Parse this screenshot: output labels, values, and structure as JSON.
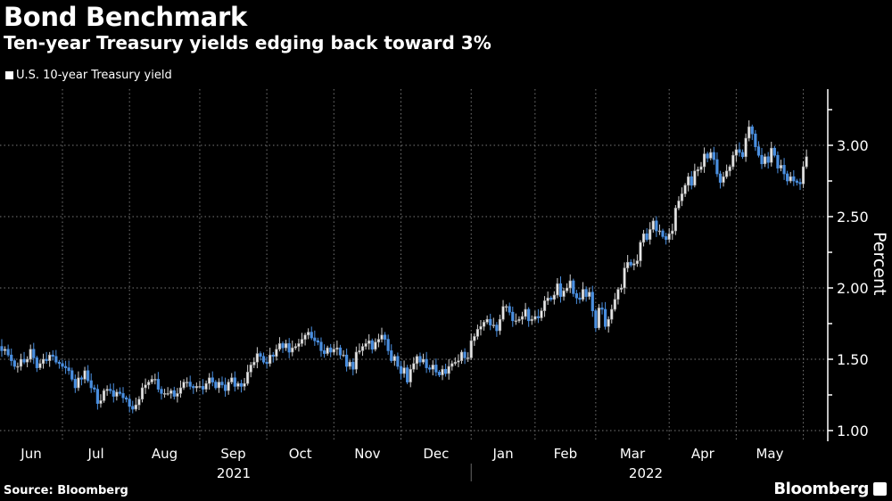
{
  "chart_data": {
    "type": "candlestick",
    "title": "Bond Benchmark",
    "subtitle": "Ten-year Treasury yields edging back toward 3%",
    "legend": [
      {
        "name": "U.S. 10-year Treasury yield",
        "color": "#ffffff"
      }
    ],
    "ylabel": "Percent",
    "ylim": [
      0.9,
      3.38
    ],
    "yticks": [
      "1.00",
      "1.50",
      "2.00",
      "2.50",
      "3.00"
    ],
    "month_labels": [
      "Jun",
      "Jul",
      "Aug",
      "Sep",
      "Oct",
      "Nov",
      "Dec",
      "Jan",
      "Feb",
      "Mar",
      "Apr",
      "May"
    ],
    "year_labels": [
      "2021",
      "2022"
    ],
    "month_start_index": [
      0,
      22,
      43,
      65,
      86,
      107,
      128,
      150,
      170,
      189,
      212,
      233,
      254
    ],
    "up_color": "#d0d0d0",
    "down_color": "#4a8fe0",
    "closes": [
      1.6,
      1.62,
      1.59,
      1.56,
      1.57,
      1.53,
      1.49,
      1.45,
      1.45,
      1.5,
      1.48,
      1.5,
      1.57,
      1.51,
      1.44,
      1.47,
      1.5,
      1.49,
      1.53,
      1.52,
      1.48,
      1.47,
      1.45,
      1.44,
      1.42,
      1.36,
      1.3,
      1.37,
      1.36,
      1.42,
      1.35,
      1.3,
      1.29,
      1.19,
      1.21,
      1.28,
      1.29,
      1.28,
      1.24,
      1.27,
      1.26,
      1.23,
      1.22,
      1.17,
      1.15,
      1.18,
      1.22,
      1.3,
      1.32,
      1.34,
      1.36,
      1.36,
      1.29,
      1.26,
      1.26,
      1.26,
      1.28,
      1.24,
      1.26,
      1.3,
      1.34,
      1.34,
      1.31,
      1.3,
      1.31,
      1.31,
      1.29,
      1.33,
      1.37,
      1.34,
      1.3,
      1.34,
      1.32,
      1.28,
      1.34,
      1.37,
      1.31,
      1.33,
      1.31,
      1.33,
      1.41,
      1.46,
      1.48,
      1.54,
      1.52,
      1.48,
      1.47,
      1.53,
      1.52,
      1.57,
      1.61,
      1.58,
      1.61,
      1.55,
      1.58,
      1.59,
      1.61,
      1.64,
      1.67,
      1.69,
      1.65,
      1.63,
      1.62,
      1.56,
      1.54,
      1.58,
      1.55,
      1.57,
      1.58,
      1.53,
      1.53,
      1.45,
      1.48,
      1.43,
      1.55,
      1.56,
      1.59,
      1.61,
      1.63,
      1.57,
      1.62,
      1.64,
      1.67,
      1.64,
      1.56,
      1.49,
      1.52,
      1.45,
      1.4,
      1.44,
      1.34,
      1.43,
      1.47,
      1.52,
      1.48,
      1.5,
      1.44,
      1.43,
      1.46,
      1.41,
      1.39,
      1.43,
      1.4,
      1.45,
      1.47,
      1.48,
      1.49,
      1.55,
      1.51,
      1.51,
      1.63,
      1.66,
      1.71,
      1.73,
      1.76,
      1.78,
      1.74,
      1.74,
      1.7,
      1.78,
      1.87,
      1.87,
      1.83,
      1.77,
      1.77,
      1.78,
      1.8,
      1.85,
      1.77,
      1.78,
      1.8,
      1.79,
      1.84,
      1.91,
      1.93,
      1.92,
      1.95,
      2.03,
      1.94,
      1.98,
      2.0,
      2.05,
      1.96,
      1.93,
      1.92,
      1.99,
      1.94,
      1.97,
      1.84,
      1.72,
      1.86,
      1.85,
      1.73,
      1.78,
      1.85,
      1.92,
      1.99,
      2.0,
      2.14,
      2.18,
      2.16,
      2.17,
      2.19,
      2.32,
      2.38,
      2.34,
      2.41,
      2.47,
      2.4,
      2.4,
      2.36,
      2.34,
      2.38,
      2.4,
      2.56,
      2.61,
      2.66,
      2.72,
      2.78,
      2.72,
      2.82,
      2.83,
      2.85,
      2.94,
      2.91,
      2.95,
      2.9,
      2.8,
      2.74,
      2.78,
      2.82,
      2.85,
      2.93,
      2.97,
      2.95,
      2.92,
      3.05,
      3.13,
      3.08,
      2.99,
      2.93,
      2.87,
      2.92,
      2.88,
      2.98,
      2.93,
      2.84,
      2.86,
      2.8,
      2.75,
      2.78,
      2.75,
      2.74,
      2.73,
      2.85,
      2.92
    ]
  },
  "footer": {
    "source": "Source: Bloomberg",
    "brand": "Bloomberg"
  }
}
